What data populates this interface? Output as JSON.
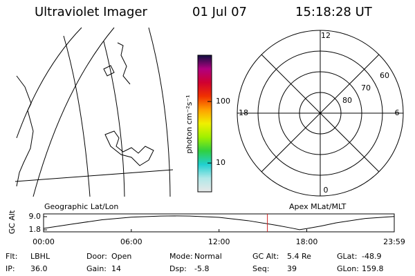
{
  "header": {
    "instrument": "Ultraviolet Imager",
    "date": "01 Jul 07",
    "time": "15:18:28 UT"
  },
  "map_label": "Geographic Lat/Lon",
  "polar_label": "Apex MLat/MLT",
  "colorbar": {
    "label": "photon cm⁻²s⁻¹",
    "scale": "log",
    "lim": [
      3.4,
      566
    ],
    "ticks": [
      10,
      100
    ],
    "colors": [
      "#e8e8e8",
      "#b0e8e8",
      "#20d0d0",
      "#30d040",
      "#a0f000",
      "#f0f000",
      "#ffa000",
      "#f03000",
      "#d00030",
      "#b00080",
      "#101040"
    ]
  },
  "polar": {
    "rlim": [
      50,
      90
    ],
    "rings": [
      60,
      70,
      80
    ],
    "mlt_ticks": [
      0,
      6,
      12,
      18
    ]
  },
  "chart_data": {
    "type": "line",
    "ylabel": "GC Alt",
    "x": [
      0,
      2,
      4,
      6,
      8,
      9,
      10,
      12,
      14,
      16,
      17,
      17.5,
      18,
      19,
      20,
      22,
      23.983
    ],
    "series": [
      {
        "color": "#000000",
        "values": [
          2.6,
          5.0,
          7.3,
          8.7,
          9.3,
          9.4,
          9.3,
          8.6,
          6.8,
          4.2,
          2.7,
          1.9,
          2.5,
          3.9,
          5.6,
          8.0,
          9.1
        ]
      }
    ],
    "xlim": [
      0,
      23.983
    ],
    "ylim": [
      0.7,
      10.5
    ],
    "xticks": [
      {
        "value": 0,
        "label": "00:00"
      },
      {
        "value": 6,
        "label": "06:00"
      },
      {
        "value": 12,
        "label": "12:00"
      },
      {
        "value": 18,
        "label": "18:00"
      },
      {
        "value": 23.983,
        "label": "23:59"
      }
    ],
    "yticks": [
      {
        "value": 9.0,
        "label": "9.0"
      },
      {
        "value": 1.8,
        "label": "1.8"
      }
    ],
    "marker_x": 15.308,
    "marker_color": "#d02020"
  },
  "info": [
    [
      {
        "label": "Flt:",
        "value": "LBHL"
      },
      {
        "label": "Door:",
        "value": "Open"
      },
      {
        "label": "Mode:",
        "value": "Normal"
      },
      {
        "label": "GC Alt:",
        "value": "5.4 Re"
      },
      {
        "label": "GLat:",
        "value": "-48.9"
      }
    ],
    [
      {
        "label": "IP:",
        "value": "36.0"
      },
      {
        "label": "Gain:",
        "value": "14"
      },
      {
        "label": "Dsp:",
        "value": "-5.8"
      },
      {
        "label": "Seq:",
        "value": "39"
      },
      {
        "label": "GLon:",
        "value": "159.8"
      }
    ]
  ]
}
